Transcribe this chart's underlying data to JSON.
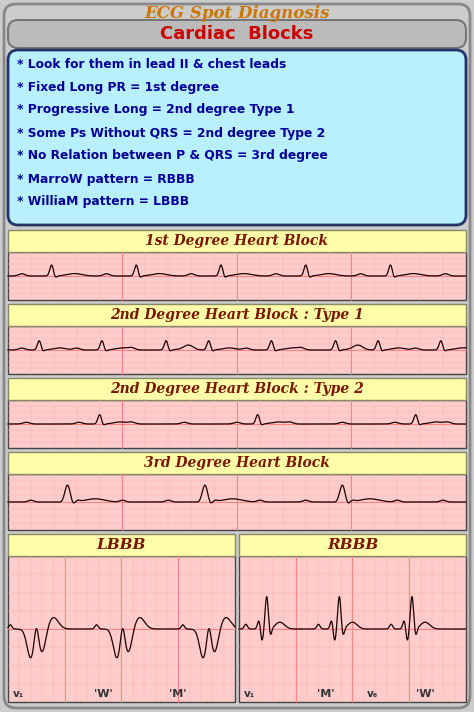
{
  "title": "ECG Spot Diagnosis",
  "title_color": "#CC7700",
  "subtitle": "Cardiac  Blocks",
  "subtitle_color": "#CC0000",
  "subtitle_bg": "#BBBBBB",
  "info_bg": "#AAEEFF",
  "info_border": "#333366",
  "info_lines": [
    "* Look for them in lead II & chest leads",
    "* Fixed Long PR = 1st degree",
    "* Progressive Long = 2nd degree Type 1",
    "* Some Ps Without QRS = 2nd degree Type 2",
    "* No Relation between P & QRS = 3rd degree",
    "* MarroW pattern = RBBB",
    "* WilliaM pattern = LBBB"
  ],
  "info_text_color": "#000099",
  "section_titles": [
    "1st Degree Heart Block",
    "2nd Degree Heart Block : Type 1",
    "2nd Degree Heart Block : Type 2",
    "3rd Degree Heart Block"
  ],
  "section_title_bg": "#FFFFAA",
  "section_title_color": "#7B1500",
  "ecg_bg": "#FFCCCC",
  "ecg_line_color": "#FF9999",
  "ecg_signal_color": "#1A0000",
  "lbbb_title": "LBBB",
  "rbbb_title": "RBBB",
  "outer_bg": "#CCCCCC",
  "card_bg": "#CCCCCC"
}
